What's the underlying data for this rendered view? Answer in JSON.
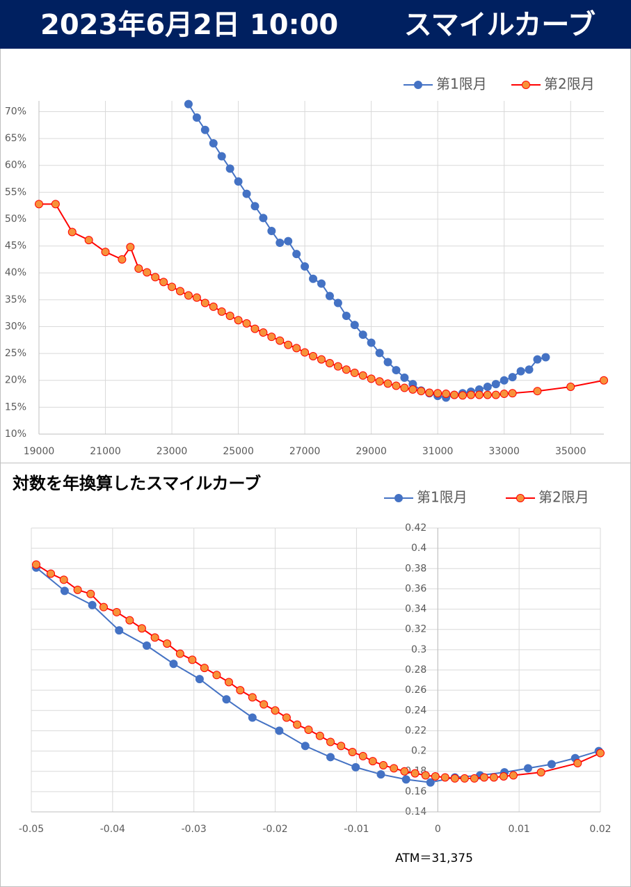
{
  "header": {
    "title": "2023年6月2日 10:00",
    "subtitle": "スマイルカーブ"
  },
  "chart_data": [
    {
      "type": "line",
      "xlim": [
        19000,
        36000
      ],
      "xticks": [
        19000,
        21000,
        23000,
        25000,
        27000,
        29000,
        31000,
        33000,
        35000
      ],
      "ylim": [
        10,
        72
      ],
      "yticks": [
        {
          "value": 10,
          "label": "10%"
        },
        {
          "value": 15,
          "label": "15%"
        },
        {
          "value": 20,
          "label": "20%"
        },
        {
          "value": 25,
          "label": "25%"
        },
        {
          "value": 30,
          "label": "30%"
        },
        {
          "value": 35,
          "label": "35%"
        },
        {
          "value": 40,
          "label": "40%"
        },
        {
          "value": 45,
          "label": "45%"
        },
        {
          "value": 50,
          "label": "50%"
        },
        {
          "value": 55,
          "label": "55%"
        },
        {
          "value": 60,
          "label": "60%"
        },
        {
          "value": 65,
          "label": "65%"
        },
        {
          "value": 70,
          "label": "70%"
        }
      ],
      "grid": true,
      "legend": "top-right",
      "series": [
        {
          "name": "第1限月",
          "color": "#4472c4",
          "marker_color": "#4472c4",
          "x": [
            23500,
            23750,
            24000,
            24250,
            24500,
            24750,
            25000,
            25250,
            25500,
            25750,
            26000,
            26250,
            26500,
            26750,
            27000,
            27250,
            27500,
            27750,
            28000,
            28250,
            28500,
            28750,
            29000,
            29250,
            29500,
            29750,
            30000,
            30250,
            30500,
            30750,
            31000,
            31250,
            31500,
            31750,
            32000,
            32250,
            32500,
            32750,
            33000,
            33250,
            33500,
            33750,
            34000,
            34250
          ],
          "values": [
            71.4,
            68.9,
            66.6,
            64.1,
            61.7,
            59.4,
            57.0,
            54.7,
            52.4,
            50.2,
            47.8,
            45.6,
            45.9,
            43.5,
            41.2,
            38.9,
            38.0,
            35.7,
            34.4,
            32.0,
            30.3,
            28.5,
            27.0,
            25.1,
            23.4,
            21.9,
            20.5,
            19.3,
            18.1,
            17.6,
            17.1,
            16.8,
            17.3,
            17.6,
            17.9,
            18.3,
            18.8,
            19.3,
            20.0,
            20.6,
            21.7,
            22.0,
            23.9,
            24.3
          ]
        },
        {
          "name": "第2限月",
          "color": "#ff0000",
          "marker_color": "#f7923a",
          "x": [
            19000,
            19500,
            20000,
            20500,
            21000,
            21500,
            21750,
            22000,
            22250,
            22500,
            22750,
            23000,
            23250,
            23500,
            23750,
            24000,
            24250,
            24500,
            24750,
            25000,
            25250,
            25500,
            25750,
            26000,
            26250,
            26500,
            26750,
            27000,
            27250,
            27500,
            27750,
            28000,
            28250,
            28500,
            28750,
            29000,
            29250,
            29500,
            29750,
            30000,
            30250,
            30500,
            30750,
            31000,
            31250,
            31500,
            31750,
            32000,
            32250,
            32500,
            32750,
            33000,
            33250,
            34000,
            35000,
            36000
          ],
          "values": [
            52.8,
            52.8,
            47.6,
            46.1,
            43.9,
            42.5,
            44.8,
            40.8,
            40.1,
            39.2,
            38.3,
            37.4,
            36.6,
            35.8,
            35.4,
            34.4,
            33.7,
            32.8,
            32.0,
            31.2,
            30.6,
            29.6,
            28.9,
            28.1,
            27.4,
            26.6,
            26.0,
            25.2,
            24.5,
            23.9,
            23.2,
            22.6,
            22.0,
            21.4,
            20.9,
            20.3,
            19.8,
            19.4,
            19.0,
            18.6,
            18.3,
            18.0,
            17.7,
            17.6,
            17.5,
            17.3,
            17.2,
            17.3,
            17.3,
            17.3,
            17.3,
            17.5,
            17.6,
            18.0,
            18.8,
            20.0
          ]
        }
      ]
    },
    {
      "type": "line",
      "title": "対数を年換算したスマイルカーブ",
      "xlim": [
        -0.05,
        0.02
      ],
      "xticks": [
        -0.05,
        -0.04,
        -0.03,
        -0.02,
        -0.01,
        0,
        0.01,
        0.02
      ],
      "ylim": [
        0.14,
        0.42
      ],
      "yticks": [
        0.14,
        0.16,
        0.18,
        0.2,
        0.22,
        0.24,
        0.26,
        0.28,
        0.3,
        0.32,
        0.34,
        0.36,
        0.38,
        0.4,
        0.42
      ],
      "grid": true,
      "legend": "top-right",
      "annotation": "ATM＝31,375",
      "series": [
        {
          "name": "第1限月",
          "color": "#4472c4",
          "marker_color": "#4472c4",
          "x": [
            -0.0494,
            -0.0459,
            -0.0425,
            -0.0392,
            -0.0358,
            -0.0325,
            -0.0293,
            -0.026,
            -0.0228,
            -0.0195,
            -0.0163,
            -0.0132,
            -0.0101,
            -0.007,
            -0.0039,
            -0.0009,
            0.0021,
            0.0052,
            0.0082,
            0.0111,
            0.014,
            0.0169,
            0.0198
          ],
          "values": [
            0.381,
            0.358,
            0.344,
            0.319,
            0.304,
            0.286,
            0.271,
            0.251,
            0.233,
            0.22,
            0.205,
            0.194,
            0.184,
            0.177,
            0.172,
            0.169,
            0.174,
            0.176,
            0.179,
            0.183,
            0.187,
            0.193,
            0.2
          ]
        },
        {
          "name": "第2限月",
          "color": "#ff0000",
          "marker_color": "#f7923a",
          "x": [
            -0.0494,
            -0.0476,
            -0.046,
            -0.0443,
            -0.0427,
            -0.0411,
            -0.0395,
            -0.0379,
            -0.0364,
            -0.0348,
            -0.0333,
            -0.0317,
            -0.0302,
            -0.0287,
            -0.0272,
            -0.0257,
            -0.0243,
            -0.0228,
            -0.0214,
            -0.02,
            -0.0186,
            -0.0173,
            -0.0159,
            -0.0145,
            -0.0132,
            -0.0119,
            -0.0105,
            -0.0092,
            -0.008,
            -0.0067,
            -0.0054,
            -0.0041,
            -0.0028,
            -0.0015,
            -0.0003,
            0.0009,
            0.0021,
            0.0033,
            0.0045,
            0.0057,
            0.0069,
            0.0081,
            0.0093,
            0.0127,
            0.0172,
            0.02
          ],
          "values": [
            0.384,
            0.375,
            0.369,
            0.359,
            0.355,
            0.342,
            0.337,
            0.329,
            0.321,
            0.312,
            0.306,
            0.296,
            0.29,
            0.282,
            0.275,
            0.268,
            0.26,
            0.253,
            0.246,
            0.24,
            0.233,
            0.226,
            0.221,
            0.215,
            0.209,
            0.205,
            0.199,
            0.195,
            0.19,
            0.186,
            0.183,
            0.18,
            0.178,
            0.176,
            0.175,
            0.174,
            0.173,
            0.173,
            0.173,
            0.174,
            0.174,
            0.175,
            0.176,
            0.179,
            0.188,
            0.198
          ]
        }
      ]
    }
  ]
}
